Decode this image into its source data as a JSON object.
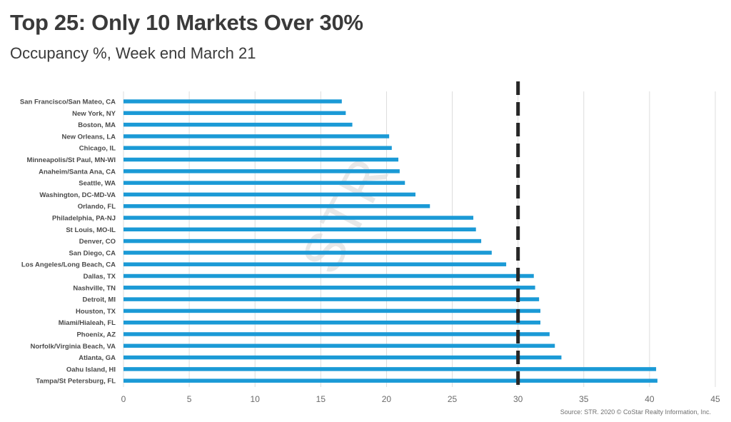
{
  "header": {
    "title": "Top 25: Only 10 Markets Over 30%",
    "subtitle": "Occupancy %, Week end March 21"
  },
  "source_note": "Source: STR. 2020 © CoStar Realty Information, Inc.",
  "watermark": "STR",
  "colors": {
    "bar": "#1b9ad6",
    "reference_line": "#262626",
    "title": "#3a3a3a",
    "gridline": "#dcdcdc"
  },
  "chart_data": {
    "type": "bar",
    "orientation": "horizontal",
    "categories": [
      "San Francisco/San Mateo, CA",
      "New York, NY",
      "Boston, MA",
      "New Orleans, LA",
      "Chicago, IL",
      "Minneapolis/St Paul, MN-WI",
      "Anaheim/Santa Ana, CA",
      "Seattle, WA",
      "Washington, DC-MD-VA",
      "Orlando, FL",
      "Philadelphia, PA-NJ",
      "St Louis, MO-IL",
      "Denver, CO",
      "San Diego, CA",
      "Los Angeles/Long Beach, CA",
      "Dallas, TX",
      "Nashville, TN",
      "Detroit, MI",
      "Houston, TX",
      "Miami/Hialeah, FL",
      "Phoenix, AZ",
      "Norfolk/Virginia Beach, VA",
      "Atlanta, GA",
      "Oahu Island, HI",
      "Tampa/St Petersburg, FL"
    ],
    "values": [
      16.6,
      16.9,
      17.4,
      20.2,
      20.4,
      20.9,
      21.0,
      21.4,
      22.2,
      23.3,
      26.6,
      26.8,
      27.2,
      28.0,
      29.1,
      31.2,
      31.3,
      31.6,
      31.7,
      31.7,
      32.4,
      32.8,
      33.3,
      40.5,
      40.6
    ],
    "reference_line": {
      "value": 30,
      "style": "dashed"
    },
    "xlim": [
      0,
      45
    ],
    "xticks": [
      0,
      5,
      10,
      15,
      20,
      25,
      30,
      35,
      40,
      45
    ],
    "grid": "vertical",
    "legend": "none"
  }
}
